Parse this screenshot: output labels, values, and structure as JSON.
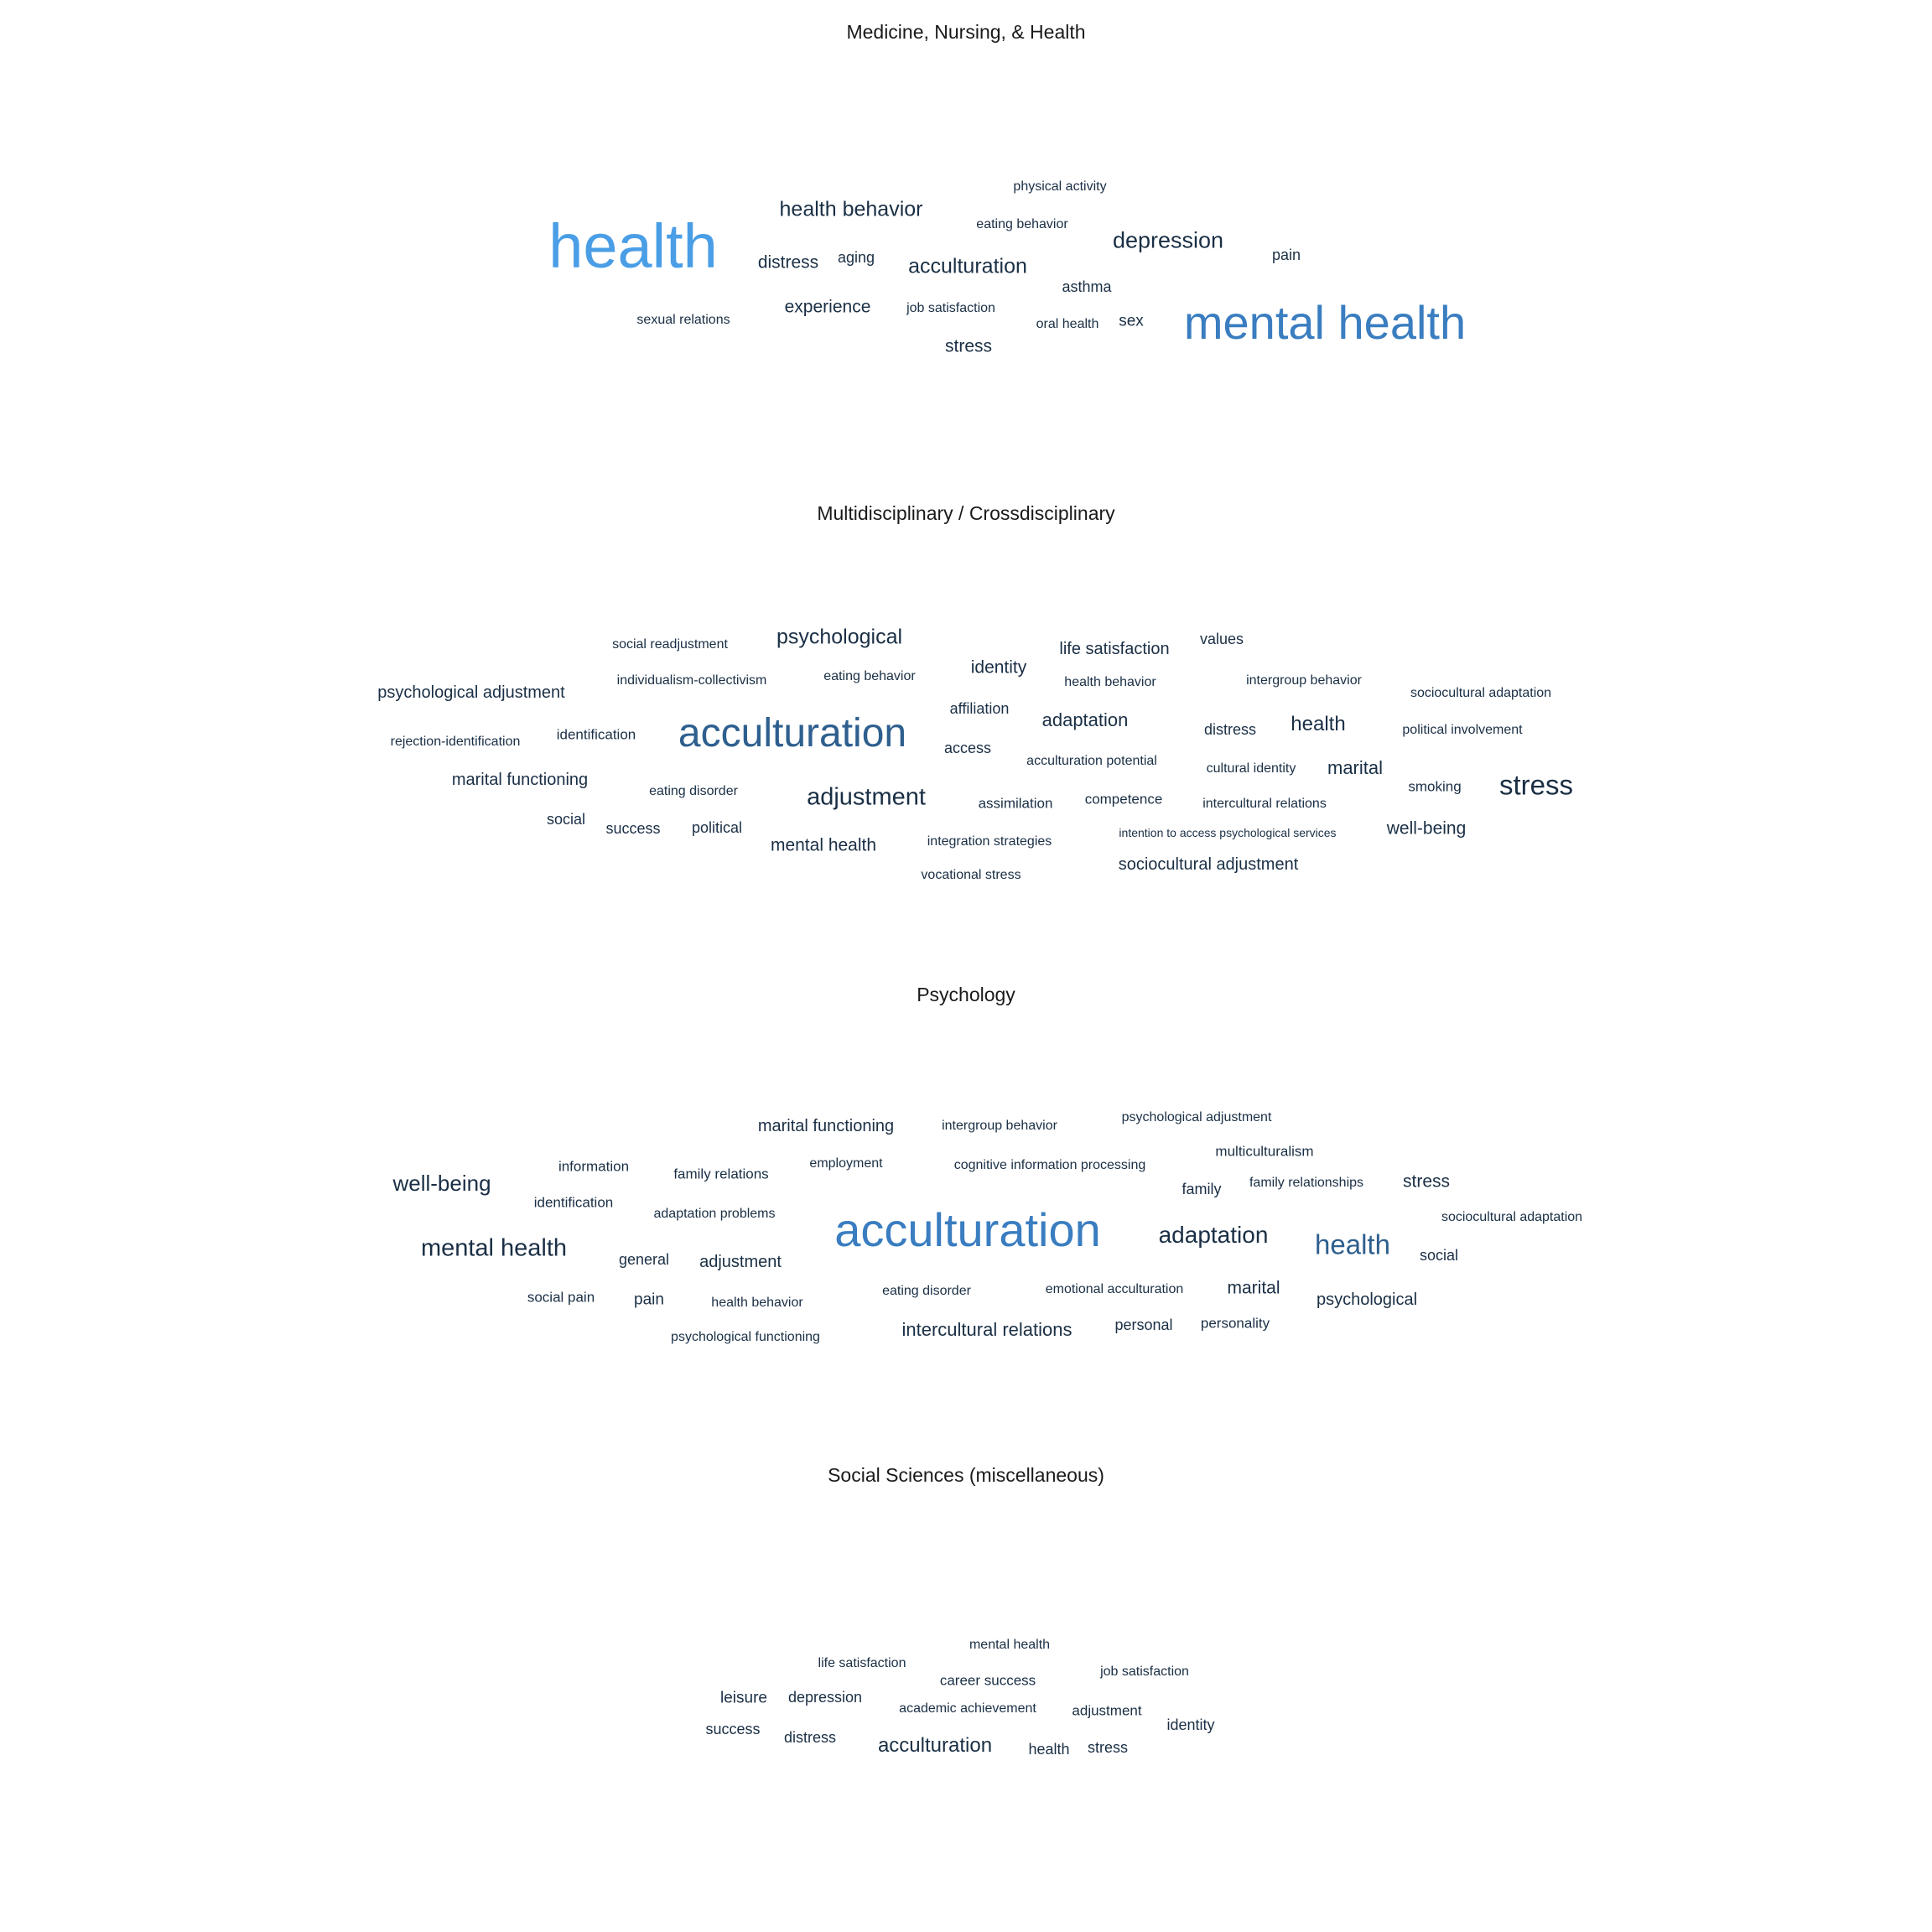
{
  "chart_data": {
    "type": "wordcloud",
    "panels": [
      {
        "title": "Medicine, Nursing, & Health",
        "words": [
          {
            "text": "health",
            "weight": 10
          },
          {
            "text": "mental health",
            "weight": 8
          },
          {
            "text": "health behavior",
            "weight": 4
          },
          {
            "text": "depression",
            "weight": 4
          },
          {
            "text": "acculturation",
            "weight": 4
          },
          {
            "text": "distress",
            "weight": 3
          },
          {
            "text": "experience",
            "weight": 3
          },
          {
            "text": "stress",
            "weight": 3
          },
          {
            "text": "aging",
            "weight": 2
          },
          {
            "text": "pain",
            "weight": 2
          },
          {
            "text": "asthma",
            "weight": 2
          },
          {
            "text": "sex",
            "weight": 2
          },
          {
            "text": "physical activity",
            "weight": 1
          },
          {
            "text": "eating behavior",
            "weight": 1
          },
          {
            "text": "job satisfaction",
            "weight": 1
          },
          {
            "text": "oral health",
            "weight": 1
          },
          {
            "text": "sexual relations",
            "weight": 1
          }
        ]
      },
      {
        "title": "Multidisciplinary / Crossdisciplinary",
        "words": [
          {
            "text": "acculturation",
            "weight": 8
          },
          {
            "text": "adjustment",
            "weight": 5
          },
          {
            "text": "stress",
            "weight": 5
          },
          {
            "text": "psychological",
            "weight": 4
          },
          {
            "text": "health",
            "weight": 4
          },
          {
            "text": "adaptation",
            "weight": 4
          },
          {
            "text": "identity",
            "weight": 3
          },
          {
            "text": "life satisfaction",
            "weight": 3
          },
          {
            "text": "marital",
            "weight": 3
          },
          {
            "text": "marital functioning",
            "weight": 3
          },
          {
            "text": "mental health",
            "weight": 3
          },
          {
            "text": "well-being",
            "weight": 3
          },
          {
            "text": "psychological adjustment",
            "weight": 3
          },
          {
            "text": "sociocultural adjustment",
            "weight": 3
          },
          {
            "text": "values",
            "weight": 2
          },
          {
            "text": "affiliation",
            "weight": 2
          },
          {
            "text": "access",
            "weight": 2
          },
          {
            "text": "distress",
            "weight": 2
          },
          {
            "text": "social",
            "weight": 2
          },
          {
            "text": "success",
            "weight": 2
          },
          {
            "text": "political",
            "weight": 2
          },
          {
            "text": "identification",
            "weight": 2
          },
          {
            "text": "assimilation",
            "weight": 2
          },
          {
            "text": "competence",
            "weight": 2
          },
          {
            "text": "smoking",
            "weight": 2
          },
          {
            "text": "eating behavior",
            "weight": 1
          },
          {
            "text": "health behavior",
            "weight": 1
          },
          {
            "text": "intergroup behavior",
            "weight": 1
          },
          {
            "text": "sociocultural adaptation",
            "weight": 1
          },
          {
            "text": "political involvement",
            "weight": 1
          },
          {
            "text": "social readjustment",
            "weight": 1
          },
          {
            "text": "individualism-collectivism",
            "weight": 1
          },
          {
            "text": "rejection-identification",
            "weight": 1
          },
          {
            "text": "eating disorder",
            "weight": 1
          },
          {
            "text": "acculturation potential",
            "weight": 1
          },
          {
            "text": "cultural identity",
            "weight": 1
          },
          {
            "text": "intercultural relations",
            "weight": 1
          },
          {
            "text": "integration strategies",
            "weight": 1
          },
          {
            "text": "vocational stress",
            "weight": 1
          },
          {
            "text": "intention to access psychological services",
            "weight": 0
          }
        ]
      },
      {
        "title": "Psychology",
        "words": [
          {
            "text": "acculturation",
            "weight": 8
          },
          {
            "text": "health",
            "weight": 5
          },
          {
            "text": "mental health",
            "weight": 4
          },
          {
            "text": "adaptation",
            "weight": 4
          },
          {
            "text": "well-being",
            "weight": 4
          },
          {
            "text": "stress",
            "weight": 3
          },
          {
            "text": "marital",
            "weight": 3
          },
          {
            "text": "psychological",
            "weight": 3
          },
          {
            "text": "intercultural relations",
            "weight": 3
          },
          {
            "text": "adjustment",
            "weight": 3
          },
          {
            "text": "marital functioning",
            "weight": 3
          },
          {
            "text": "information",
            "weight": 2
          },
          {
            "text": "identification",
            "weight": 2
          },
          {
            "text": "family",
            "weight": 2
          },
          {
            "text": "social",
            "weight": 2
          },
          {
            "text": "general",
            "weight": 2
          },
          {
            "text": "pain",
            "weight": 2
          },
          {
            "text": "social pain",
            "weight": 2
          },
          {
            "text": "personal",
            "weight": 2
          },
          {
            "text": "personality",
            "weight": 2
          },
          {
            "text": "multiculturalism",
            "weight": 2
          },
          {
            "text": "family relations",
            "weight": 2
          },
          {
            "text": "employment",
            "weight": 2
          },
          {
            "text": "health behavior",
            "weight": 2
          },
          {
            "text": "eating disorder",
            "weight": 2
          },
          {
            "text": "intergroup behavior",
            "weight": 1
          },
          {
            "text": "psychological adjustment",
            "weight": 1
          },
          {
            "text": "cognitive information processing",
            "weight": 1
          },
          {
            "text": "family relationships",
            "weight": 1
          },
          {
            "text": "sociocultural adaptation",
            "weight": 1
          },
          {
            "text": "adaptation problems",
            "weight": 1
          },
          {
            "text": "emotional acculturation",
            "weight": 1
          },
          {
            "text": "psychological functioning",
            "weight": 1
          }
        ]
      },
      {
        "title": "Social Sciences (miscellaneous)",
        "words": [
          {
            "text": "acculturation",
            "weight": 3
          },
          {
            "text": "leisure",
            "weight": 2
          },
          {
            "text": "depression",
            "weight": 2
          },
          {
            "text": "success",
            "weight": 2
          },
          {
            "text": "distress",
            "weight": 2
          },
          {
            "text": "health",
            "weight": 2
          },
          {
            "text": "stress",
            "weight": 2
          },
          {
            "text": "identity",
            "weight": 2
          },
          {
            "text": "adjustment",
            "weight": 2
          },
          {
            "text": "career success",
            "weight": 2
          },
          {
            "text": "mental health",
            "weight": 1
          },
          {
            "text": "life satisfaction",
            "weight": 1
          },
          {
            "text": "job satisfaction",
            "weight": 1
          },
          {
            "text": "academic achievement",
            "weight": 1
          }
        ]
      }
    ],
    "colors": {
      "largest": "#4a9ee6",
      "large": "#3a7dc0",
      "mid": "#2e5f8e",
      "normal": "#1a2f45",
      "title": "#1a1a1a"
    }
  }
}
